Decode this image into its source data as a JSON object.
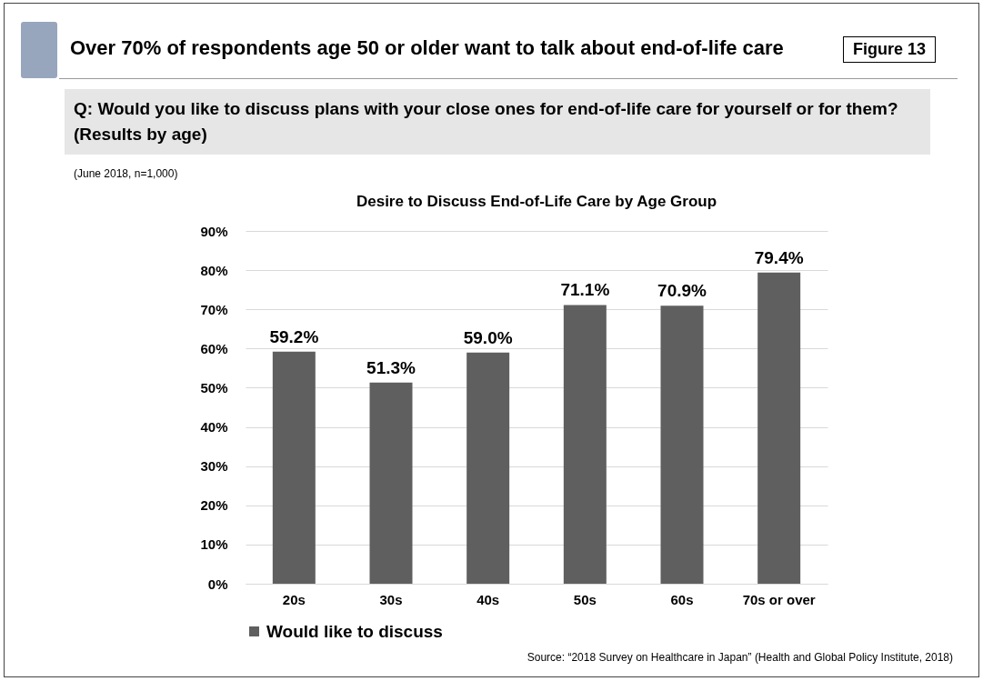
{
  "chart_data": {
    "type": "bar",
    "title": "Desire to Discuss End-of-Life Care by Age Group",
    "annotations": [
      "Over 70% of respondents age 50 or older want to talk about end-of-life care",
      "Figure 13",
      "Q: Would you like to discuss plans with your close ones for end-of-life care for yourself or for them? (Results by age)",
      "(June 2018, n=1,000)",
      "Source: “2018 Survey on Healthcare in Japan” (Health and Global Policy Institute, 2018)"
    ],
    "categories": [
      "20s",
      "30s",
      "40s",
      "50s",
      "60s",
      "70s or over"
    ],
    "series": [
      {
        "name": "Would like to discuss",
        "color": "#5f5f5f",
        "values": [
          59.2,
          51.3,
          59.0,
          71.1,
          70.9,
          79.4
        ],
        "value_labels": [
          "59.2%",
          "51.3%",
          "59.0%",
          "71.1%",
          "70.9%",
          "79.4%"
        ]
      }
    ],
    "ylim": [
      0,
      90
    ],
    "yticks": [
      {
        "value": 0,
        "label": "0%"
      },
      {
        "value": 10,
        "label": "10%"
      },
      {
        "value": 20,
        "label": "20%"
      },
      {
        "value": 30,
        "label": "30%"
      },
      {
        "value": 40,
        "label": "40%"
      },
      {
        "value": 50,
        "label": "50%"
      },
      {
        "value": 60,
        "label": "60%"
      },
      {
        "value": 70,
        "label": "70%"
      },
      {
        "value": 80,
        "label": "80%"
      },
      {
        "value": 90,
        "label": "90%"
      }
    ],
    "grid": "y",
    "legend": "bottom"
  }
}
